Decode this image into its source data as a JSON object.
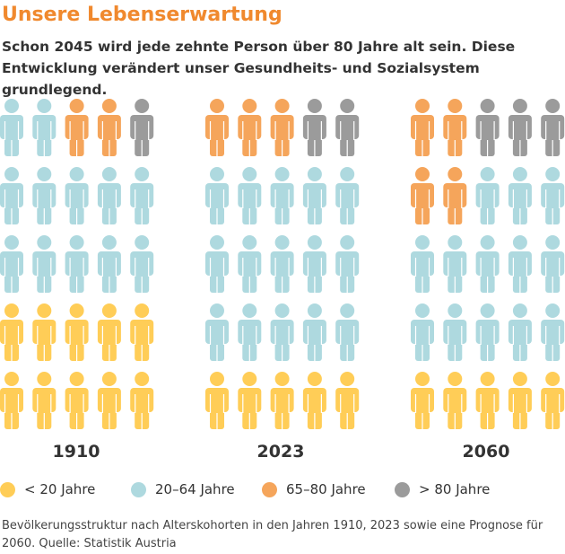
{
  "title": "Unsere Lebenserwartung",
  "subtitle": "Schon 2045 wird jede zehnte Person über 80 Jahre alt sein. Diese Entwicklung verändert unser Gesundheits- und Sozialsystem grundlegend.",
  "footnote": "Bevölkerungsstruktur nach Alterskohorten in den Jahren 1910, 2023 sowie eine Prognose für 2060. Quelle: Statistik Austria",
  "chart_data": {
    "type": "pictogram",
    "unit": "each figure = 1/25 of population",
    "categories": [
      "< 20 Jahre",
      "20–64 Jahre",
      "65–80 Jahre",
      "> 80 Jahre"
    ],
    "colors": {
      "< 20 Jahre": "#FFCD57",
      "20–64 Jahre": "#AED9DF",
      "65–80 Jahre": "#F5A55B",
      "> 80 Jahre": "#9B9B9B"
    },
    "groups": [
      {
        "year": "1910",
        "counts": {
          "< 20 Jahre": 10,
          "20–64 Jahre": 12,
          "65–80 Jahre": 2,
          "> 80 Jahre": 1
        },
        "rows": [
          [
            "20–64 Jahre",
            "20–64 Jahre",
            "65–80 Jahre",
            "65–80 Jahre",
            "> 80 Jahre"
          ],
          [
            "20–64 Jahre",
            "20–64 Jahre",
            "20–64 Jahre",
            "20–64 Jahre",
            "20–64 Jahre"
          ],
          [
            "20–64 Jahre",
            "20–64 Jahre",
            "20–64 Jahre",
            "20–64 Jahre",
            "20–64 Jahre"
          ],
          [
            "< 20 Jahre",
            "< 20 Jahre",
            "< 20 Jahre",
            "< 20 Jahre",
            "< 20 Jahre"
          ],
          [
            "< 20 Jahre",
            "< 20 Jahre",
            "< 20 Jahre",
            "< 20 Jahre",
            "< 20 Jahre"
          ]
        ]
      },
      {
        "year": "2023",
        "counts": {
          "< 20 Jahre": 5,
          "20–64 Jahre": 15,
          "65–80 Jahre": 3,
          "> 80 Jahre": 2
        },
        "rows": [
          [
            "65–80 Jahre",
            "65–80 Jahre",
            "65–80 Jahre",
            "> 80 Jahre",
            "> 80 Jahre"
          ],
          [
            "20–64 Jahre",
            "20–64 Jahre",
            "20–64 Jahre",
            "20–64 Jahre",
            "20–64 Jahre"
          ],
          [
            "20–64 Jahre",
            "20–64 Jahre",
            "20–64 Jahre",
            "20–64 Jahre",
            "20–64 Jahre"
          ],
          [
            "20–64 Jahre",
            "20–64 Jahre",
            "20–64 Jahre",
            "20–64 Jahre",
            "20–64 Jahre"
          ],
          [
            "< 20 Jahre",
            "< 20 Jahre",
            "< 20 Jahre",
            "< 20 Jahre",
            "< 20 Jahre"
          ]
        ]
      },
      {
        "year": "2060",
        "counts": {
          "< 20 Jahre": 5,
          "20–64 Jahre": 13,
          "65–80 Jahre": 4,
          "> 80 Jahre": 3
        },
        "rows": [
          [
            "65–80 Jahre",
            "65–80 Jahre",
            "> 80 Jahre",
            "> 80 Jahre",
            "> 80 Jahre"
          ],
          [
            "65–80 Jahre",
            "65–80 Jahre",
            "20–64 Jahre",
            "20–64 Jahre",
            "20–64 Jahre"
          ],
          [
            "20–64 Jahre",
            "20–64 Jahre",
            "20–64 Jahre",
            "20–64 Jahre",
            "20–64 Jahre"
          ],
          [
            "20–64 Jahre",
            "20–64 Jahre",
            "20–64 Jahre",
            "20–64 Jahre",
            "20–64 Jahre"
          ],
          [
            "< 20 Jahre",
            "< 20 Jahre",
            "< 20 Jahre",
            "< 20 Jahre",
            "< 20 Jahre"
          ]
        ]
      }
    ],
    "legend": [
      "< 20 Jahre",
      "20–64 Jahre",
      "65–80 Jahre",
      "> 80 Jahre"
    ]
  }
}
